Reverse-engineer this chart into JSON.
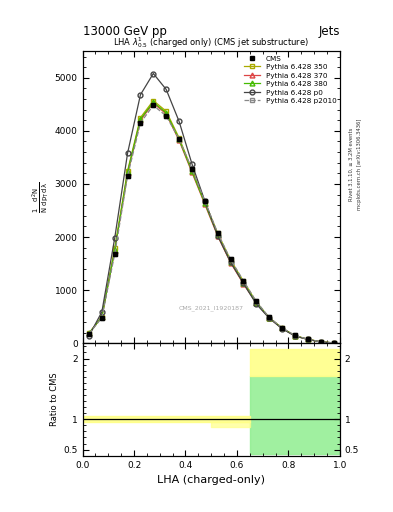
{
  "title_top": "13000 GeV pp",
  "title_right": "Jets",
  "panel_title": "LHA $\\lambda^{1}_{0.5}$ (charged only) (CMS jet substructure)",
  "xlabel": "LHA (charged-only)",
  "watermark": "CMS_2021_I1920187",
  "x_bins": [
    0.0,
    0.05,
    0.1,
    0.15,
    0.2,
    0.25,
    0.3,
    0.35,
    0.4,
    0.45,
    0.5,
    0.55,
    0.6,
    0.65,
    0.7,
    0.75,
    0.8,
    0.85,
    0.9,
    0.95,
    1.0
  ],
  "cms_y": [
    180,
    480,
    1680,
    3150,
    4150,
    4480,
    4280,
    3850,
    3280,
    2680,
    2080,
    1580,
    1180,
    790,
    490,
    295,
    148,
    78,
    29,
    9
  ],
  "p350_y": [
    190,
    490,
    1790,
    3250,
    4250,
    4570,
    4370,
    3870,
    3270,
    2670,
    2070,
    1570,
    1170,
    780,
    485,
    288,
    144,
    77,
    28,
    8
  ],
  "p370_y": [
    185,
    505,
    1740,
    3200,
    4200,
    4520,
    4320,
    3820,
    3220,
    2620,
    2020,
    1520,
    1120,
    760,
    478,
    282,
    141,
    75,
    27,
    8
  ],
  "p380_y": [
    188,
    500,
    1750,
    3220,
    4220,
    4540,
    4340,
    3840,
    3240,
    2640,
    2040,
    1540,
    1140,
    768,
    481,
    284,
    142,
    76,
    27,
    8
  ],
  "p0_y": [
    140,
    590,
    1980,
    3580,
    4680,
    5080,
    4780,
    4180,
    3380,
    2680,
    2030,
    1530,
    1130,
    740,
    475,
    275,
    138,
    73,
    27,
    8
  ],
  "p2010_y": [
    180,
    480,
    1680,
    3150,
    4150,
    4480,
    4280,
    3850,
    3280,
    2680,
    2080,
    1580,
    1180,
    790,
    490,
    295,
    148,
    78,
    29,
    9
  ],
  "cms_color": "#000000",
  "p350_color": "#aaaa00",
  "p370_color": "#dd4444",
  "p380_color": "#44bb00",
  "p0_color": "#444444",
  "p2010_color": "#888888",
  "ylim_main": [
    0,
    5500
  ],
  "ylim_ratio": [
    0.4,
    2.25
  ],
  "xlim": [
    0.0,
    1.0
  ],
  "yticks_main": [
    0,
    1000,
    2000,
    3000,
    4000,
    5000
  ],
  "yticks_ratio": [
    0.5,
    1.0,
    2.0
  ],
  "right_label1": "Rivet 3.1.10, ≥ 3.2M events",
  "right_label2": "mcplots.cern.ch [arXiv:1306.3436]"
}
